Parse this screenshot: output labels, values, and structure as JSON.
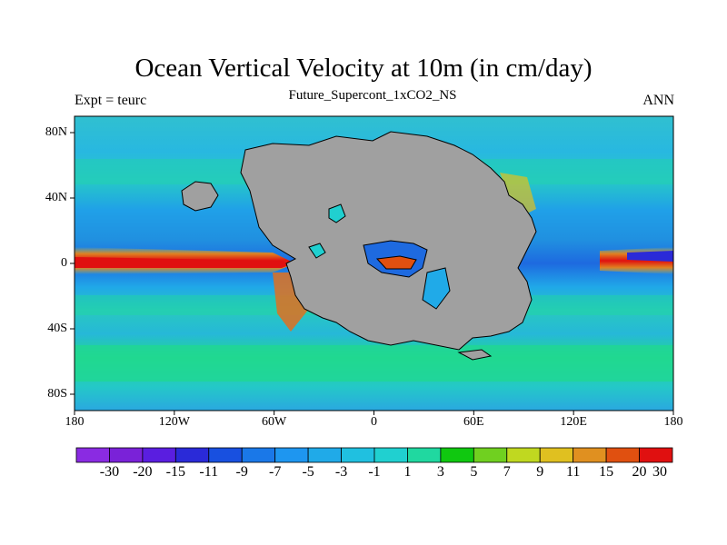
{
  "title": "Ocean Vertical Velocity at 10m (in cm/day)",
  "subtitle": "Future_Supercont_1xCO2_NS",
  "left_label": "Expt = teurc",
  "right_label": "ANN",
  "map": {
    "lon_range": [
      -180,
      180
    ],
    "lat_range": [
      -90,
      90
    ],
    "land_color": "#a0a0a0",
    "x_ticks": [
      {
        "value": -180,
        "label": "180"
      },
      {
        "value": -120,
        "label": "120W"
      },
      {
        "value": -60,
        "label": "60W"
      },
      {
        "value": 0,
        "label": "0"
      },
      {
        "value": 60,
        "label": "60E"
      },
      {
        "value": 120,
        "label": "120E"
      },
      {
        "value": 180,
        "label": "180"
      }
    ],
    "y_ticks": [
      {
        "value": 80,
        "label": "80N"
      },
      {
        "value": 40,
        "label": "40N"
      },
      {
        "value": 0,
        "label": "0"
      },
      {
        "value": -40,
        "label": "40S"
      },
      {
        "value": -80,
        "label": "80S"
      }
    ]
  },
  "colorbar": {
    "labels": [
      "-30",
      "-20",
      "-15",
      "-11",
      "-9",
      "-7",
      "-5",
      "-3",
      "-1",
      "1",
      "3",
      "5",
      "7",
      "9",
      "11",
      "15",
      "20",
      "30"
    ],
    "colors": [
      "#8a2be2",
      "#7a22d8",
      "#5a1ee0",
      "#2a2ad8",
      "#1850e0",
      "#1a78e8",
      "#1e96f0",
      "#20aae8",
      "#20c0e0",
      "#20d0d0",
      "#20d8a0",
      "#10c810",
      "#70d020",
      "#c0d820",
      "#e0c020",
      "#e09020",
      "#e05010",
      "#e01010"
    ]
  }
}
